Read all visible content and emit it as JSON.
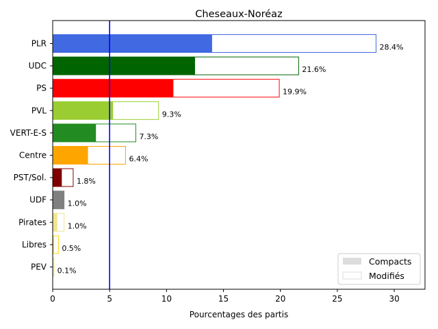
{
  "chart_data": {
    "type": "bar",
    "orientation": "horizontal",
    "title": "Cheseaux-Noréaz",
    "xlabel": "Pourcentages des partis",
    "ylabel": "",
    "xlim": [
      0,
      32.7
    ],
    "xticks": [
      0,
      5,
      10,
      15,
      20,
      25,
      30
    ],
    "threshold": 5,
    "threshold_color": "#0000ff",
    "categories": [
      "PLR",
      "UDC",
      "PS",
      "PVL",
      "VERT-E-S",
      "Centre",
      "PST/Sol.",
      "UDF",
      "Pirates",
      "Libres",
      "PEV"
    ],
    "colors": [
      "#4169e1",
      "#006400",
      "#ff0000",
      "#9acd32",
      "#228b22",
      "#ffa500",
      "#800000",
      "#808080",
      "#f0e68c",
      "#ffd700",
      "#ffd700"
    ],
    "series": [
      {
        "name": "Compacts",
        "values": [
          14.0,
          12.5,
          10.6,
          5.3,
          3.8,
          3.1,
          0.8,
          1.0,
          0.4,
          0.1,
          0.0
        ]
      },
      {
        "name": "Modifiés",
        "values": [
          28.4,
          21.6,
          19.9,
          9.3,
          7.3,
          6.4,
          1.8,
          1.0,
          1.0,
          0.5,
          0.1
        ]
      }
    ],
    "value_labels": [
      "28.4%",
      "21.6%",
      "19.9%",
      "9.3%",
      "7.3%",
      "6.4%",
      "1.8%",
      "1.0%",
      "1.0%",
      "0.5%",
      "0.1%"
    ],
    "legend": {
      "position": "lower-right",
      "entries": [
        "Compacts",
        "Modifiés"
      ]
    },
    "grid": false
  }
}
